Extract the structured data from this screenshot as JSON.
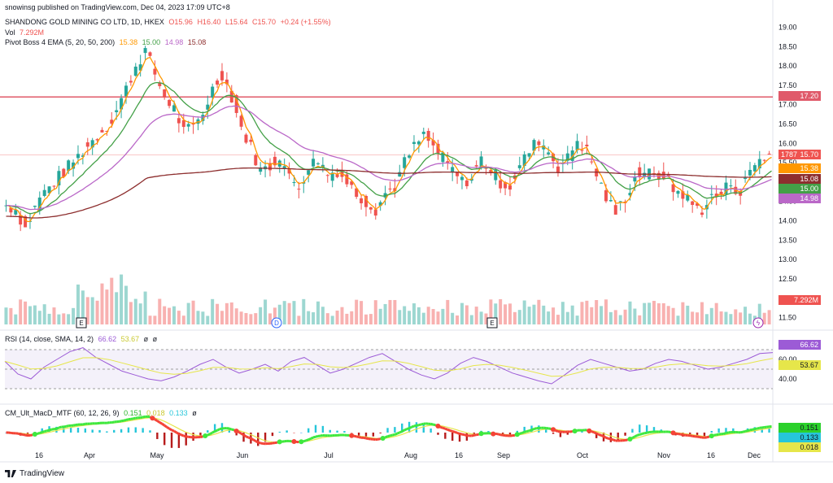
{
  "header": {
    "published": "snowinsg published on TradingView.com, Dec 04, 2023 17:09 UTC+8",
    "symbol_line": "SHANDONG GOLD MINING CO LTD, 1D, HKEX",
    "o": "O15.96",
    "h": "H16.40",
    "l": "L15.64",
    "c": "C15.70",
    "chg": "+0.24 (+1.55%)",
    "vol_label": "Vol",
    "vol_value": "7.292M",
    "pivot_label": "Pivot Boss 4 EMA (5, 20, 50, 200)",
    "ema_values": [
      "15.38",
      "15.00",
      "14.98",
      "15.08"
    ],
    "rsi_label": "RSI (14, close, SMA, 14, 2)",
    "rsi_values": [
      "66.62",
      "53.67",
      "ø",
      "ø"
    ],
    "macd_label": "CM_Ult_MacD_MTF (60, 12, 26, 9)",
    "macd_values": [
      "0.151",
      "0.018",
      "0.133",
      "ø"
    ]
  },
  "brand": "TradingView",
  "colors": {
    "up": "#26a69a",
    "down": "#ef5350",
    "ema5": "#ff9800",
    "ema20": "#43a047",
    "ema50": "#ba68c8",
    "ema200": "#8d2e2e",
    "rsi": "#9c5bd6",
    "rsi_ma": "#e6e64a",
    "hline": "#e05a6a"
  },
  "badges": {
    "hline": "17.20",
    "ticker": "1787",
    "price": "15.70",
    "ema5": "15.38",
    "ema200": "15.08",
    "ema20": "15.00",
    "ema50": "14.98",
    "vol": "7.292M",
    "rsi": "66.62",
    "rsi_ma": "53.67",
    "macd1": "0.151",
    "macd2": "0.133",
    "macd3": "0.018"
  },
  "events": [
    "E",
    "D",
    "E"
  ],
  "chart_data": {
    "type": "candlestick",
    "price_axis": {
      "ylim": [
        11.3,
        19.2
      ],
      "ticks": [
        "19.00",
        "18.50",
        "18.00",
        "17.50",
        "17.00",
        "16.50",
        "16.00",
        "15.50",
        "15.00",
        "14.50",
        "14.00",
        "13.50",
        "13.00",
        "12.50",
        "12.00",
        "11.50"
      ]
    },
    "rsi_axis": {
      "ticks": [
        "60.00",
        "40.00"
      ],
      "levels": [
        70,
        30
      ]
    },
    "x_ticks": [
      "16",
      "Apr",
      "May",
      "Jun",
      "Jul",
      "Aug",
      "16",
      "Sep",
      "Oct",
      "Nov",
      "16",
      "Dec"
    ],
    "horizontal_line": 17.2,
    "last_price_line": 15.7,
    "close_points": [
      [
        0,
        14.4
      ],
      [
        4,
        14.3
      ],
      [
        8,
        13.8
      ],
      [
        14,
        14.6
      ],
      [
        20,
        15.0
      ],
      [
        26,
        15.4
      ],
      [
        32,
        15.8
      ],
      [
        38,
        16.2
      ],
      [
        44,
        16.6
      ],
      [
        50,
        17.4
      ],
      [
        54,
        18.0
      ],
      [
        58,
        18.4
      ],
      [
        62,
        17.8
      ],
      [
        66,
        17.2
      ],
      [
        70,
        16.9
      ],
      [
        74,
        16.3
      ],
      [
        78,
        16.4
      ],
      [
        82,
        16.8
      ],
      [
        86,
        17.4
      ],
      [
        90,
        17.8
      ],
      [
        94,
        17.2
      ],
      [
        98,
        16.4
      ],
      [
        102,
        15.9
      ],
      [
        106,
        15.3
      ],
      [
        110,
        15.4
      ],
      [
        114,
        15.7
      ],
      [
        118,
        15.1
      ],
      [
        122,
        14.9
      ],
      [
        126,
        15.4
      ],
      [
        130,
        15.6
      ],
      [
        134,
        15.2
      ],
      [
        138,
        15.3
      ],
      [
        142,
        15.0
      ],
      [
        146,
        14.7
      ],
      [
        150,
        14.5
      ],
      [
        154,
        14.3
      ],
      [
        158,
        14.7
      ],
      [
        162,
        14.9
      ],
      [
        166,
        15.5
      ],
      [
        170,
        15.9
      ],
      [
        174,
        16.2
      ],
      [
        178,
        15.9
      ],
      [
        182,
        15.6
      ],
      [
        186,
        15.3
      ],
      [
        190,
        15.0
      ],
      [
        194,
        15.1
      ],
      [
        198,
        15.6
      ],
      [
        202,
        15.3
      ],
      [
        206,
        15.0
      ],
      [
        210,
        14.9
      ],
      [
        214,
        15.4
      ],
      [
        218,
        15.8
      ],
      [
        222,
        16.1
      ],
      [
        226,
        15.8
      ],
      [
        230,
        15.4
      ],
      [
        234,
        15.6
      ],
      [
        238,
        16.1
      ],
      [
        242,
        15.8
      ],
      [
        246,
        15.2
      ],
      [
        250,
        14.6
      ],
      [
        254,
        14.2
      ],
      [
        258,
        14.6
      ],
      [
        262,
        15.1
      ],
      [
        266,
        15.3
      ],
      [
        270,
        15.1
      ],
      [
        274,
        15.2
      ],
      [
        278,
        14.8
      ],
      [
        282,
        14.7
      ],
      [
        286,
        14.4
      ],
      [
        290,
        14.3
      ],
      [
        294,
        14.6
      ],
      [
        298,
        14.7
      ],
      [
        302,
        15.0
      ],
      [
        306,
        14.7
      ],
      [
        310,
        15.3
      ],
      [
        314,
        15.6
      ],
      [
        318,
        15.7
      ]
    ],
    "n_bars": 320,
    "volume_ylim": [
      0,
      12
    ],
    "rsi_approx": [
      58,
      45,
      40,
      52,
      60,
      68,
      72,
      62,
      55,
      48,
      44,
      40,
      38,
      42,
      48,
      55,
      60,
      52,
      46,
      50,
      55,
      48,
      58,
      62,
      54,
      46,
      50,
      56,
      62,
      66,
      58,
      50,
      44,
      40,
      46,
      56,
      62,
      58,
      52,
      46,
      42,
      38,
      35,
      44,
      54,
      60,
      56,
      52,
      48,
      50,
      56,
      60,
      58,
      54,
      50,
      52,
      56,
      60,
      66,
      67
    ]
  }
}
